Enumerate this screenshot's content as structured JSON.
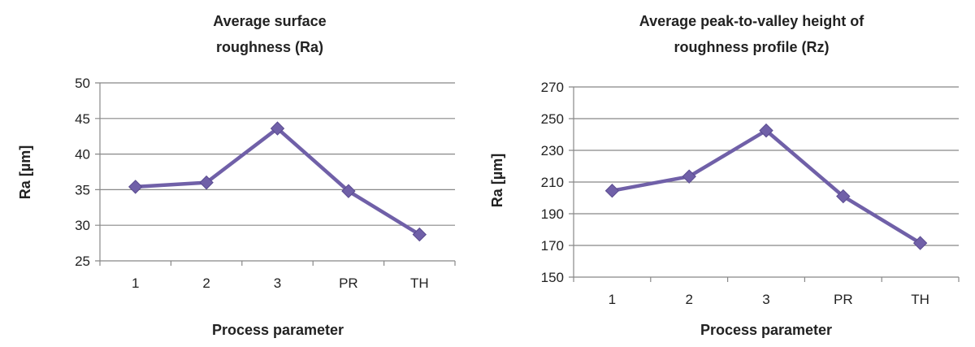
{
  "colors": {
    "series": "#7060A8",
    "grid": "#888888"
  },
  "chart_data": [
    {
      "type": "line",
      "title_lines": [
        "Average surface",
        "roughness (Ra)"
      ],
      "xlabel": "Process parameter",
      "ylabel": "Ra [µm]",
      "categories": [
        "1",
        "2",
        "3",
        "PR",
        "TH"
      ],
      "ylim": [
        25,
        50
      ],
      "yticks": [
        25,
        30,
        35,
        40,
        45,
        50
      ],
      "grid": true,
      "series": [
        {
          "name": "",
          "values": [
            35.4,
            36.0,
            43.6,
            34.8,
            28.7
          ]
        }
      ]
    },
    {
      "type": "line",
      "title_lines": [
        "Average peak-to-valley height of",
        "roughness profile (Rz)"
      ],
      "xlabel": "Process parameter",
      "ylabel": "Ra [µm]",
      "categories": [
        "1",
        "2",
        "3",
        "PR",
        "TH"
      ],
      "ylim": [
        150,
        270
      ],
      "yticks": [
        150,
        170,
        190,
        210,
        230,
        250,
        270
      ],
      "grid": true,
      "series": [
        {
          "name": "",
          "values": [
            204.5,
            213.5,
            242.5,
            201.0,
            171.5
          ]
        }
      ]
    }
  ]
}
